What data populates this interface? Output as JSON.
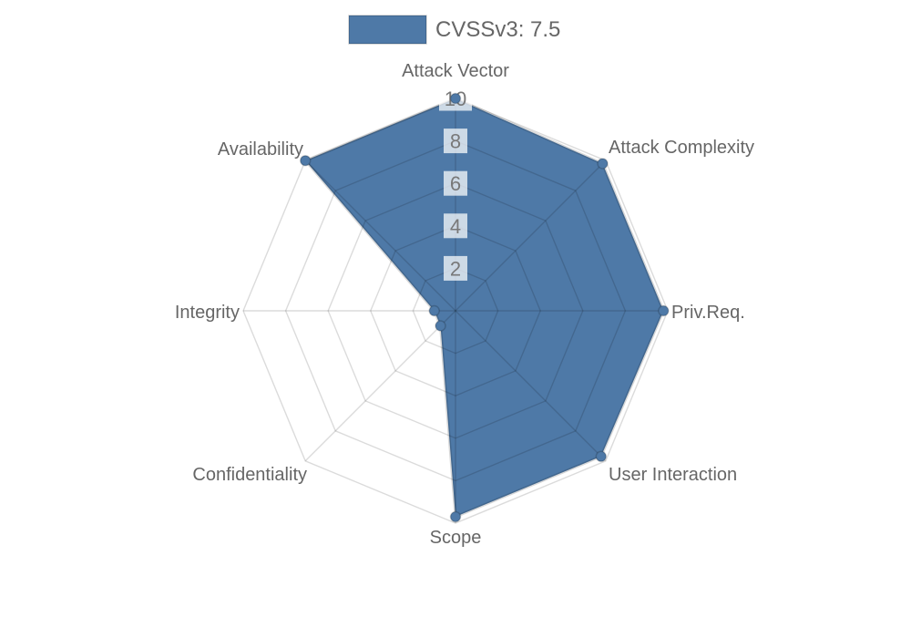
{
  "legend": {
    "label": "CVSSv3: 7.5"
  },
  "colors": {
    "series_fill": "#4e79a7",
    "series_edge": "rgba(0,0,0,0.15)",
    "grid_line": "rgba(0,0,0,0.14)",
    "tick_backdrop": "rgba(255,255,255,0.72)",
    "label_text": "#666666",
    "tick_text": "#787878"
  },
  "chart_data": {
    "type": "radar",
    "title": "CVSSv3: 7.5",
    "score": 7.5,
    "legend_position": "top",
    "grid": true,
    "rlim": [
      0,
      10
    ],
    "ticks": [
      2,
      4,
      6,
      8,
      10
    ],
    "axes": [
      "Attack Vector",
      "Attack Complexity",
      "Priv.Req.",
      "User Interaction",
      "Scope",
      "Confidentiality",
      "Integrity",
      "Availability"
    ],
    "series": [
      {
        "name": "CVSSv3: 7.5",
        "values": [
          10,
          9.8,
          9.8,
          9.7,
          9.7,
          1,
          1,
          10
        ]
      }
    ]
  }
}
